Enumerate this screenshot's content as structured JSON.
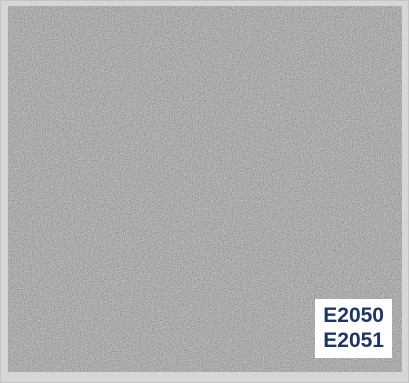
{
  "swatch": {
    "texture": "speckled-grey-surface",
    "base_color": "#8f8f8f",
    "frame_color": "#d6d6d6"
  },
  "label": {
    "codes": [
      "E2050",
      "E2051"
    ],
    "text_color": "#1e3565",
    "background_color": "#ffffff"
  }
}
